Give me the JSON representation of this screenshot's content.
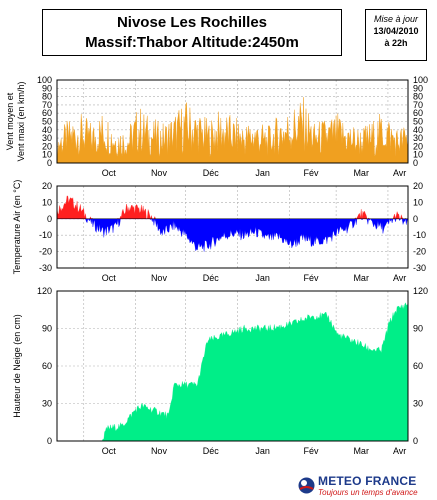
{
  "header": {
    "title_line1": "Nivose Les Rochilles",
    "title_line2": "Massif:Thabor Altitude:2450m"
  },
  "update": {
    "label": "Mise à jour",
    "date": "13/04/2010",
    "time": "à 22h"
  },
  "footer": {
    "brand": "METEO FRANCE",
    "slogan": "Toujours un temps d'avance"
  },
  "colors": {
    "wind": "#f0a020",
    "temp_pos": "#ff2020",
    "temp_neg": "#0000ff",
    "snow": "#00ee88",
    "grid": "#b0b0b0"
  },
  "chart_data": [
    {
      "type": "area",
      "ylabel": "Vent moyen et Vent maxi (en km/h)",
      "ylim": [
        0,
        100
      ],
      "yticks": [
        0,
        10,
        20,
        30,
        40,
        50,
        60,
        70,
        80,
        90,
        100
      ],
      "xticks": [
        "Oct",
        "Nov",
        "Déc",
        "Jan",
        "Fév",
        "Mar",
        "Avr"
      ],
      "grid": true,
      "x_start": "2009-09-15",
      "x_end": "2010-04-13",
      "series": [
        {
          "x": [
            "2009-09-15",
            "2009-09-22",
            "2009-09-29",
            "2009-10-06",
            "2009-10-13",
            "2009-10-20",
            "2009-10-27",
            "2009-11-03",
            "2009-11-10",
            "2009-11-17",
            "2009-11-24",
            "2009-12-01",
            "2009-12-08",
            "2009-12-15",
            "2009-12-22",
            "2009-12-29",
            "2010-01-05",
            "2010-01-12",
            "2010-01-19",
            "2010-01-26",
            "2010-02-02",
            "2010-02-09",
            "2010-02-16",
            "2010-02-23",
            "2010-03-02",
            "2010-03-09",
            "2010-03-16",
            "2010-03-23",
            "2010-03-30",
            "2010-04-06",
            "2010-04-13"
          ],
          "values": [
            35,
            48,
            55,
            45,
            60,
            42,
            38,
            65,
            50,
            45,
            55,
            70,
            58,
            48,
            60,
            52,
            45,
            50,
            40,
            55,
            62,
            75,
            45,
            50,
            55,
            45,
            40,
            48,
            60,
            40,
            45
          ]
        }
      ]
    },
    {
      "type": "area",
      "ylabel": "Temperature Air (en °C)",
      "ylim": [
        -30,
        20
      ],
      "yticks": [
        -30,
        -20,
        -10,
        0,
        10,
        20
      ],
      "xticks": [
        "Oct",
        "Nov",
        "Déc",
        "Jan",
        "Fév",
        "Mar",
        "Avr"
      ],
      "grid": true,
      "x_start": "2009-09-15",
      "x_end": "2010-04-13",
      "series": [
        {
          "x": [
            "2009-09-15",
            "2009-09-22",
            "2009-09-29",
            "2009-10-06",
            "2009-10-13",
            "2009-10-20",
            "2009-10-27",
            "2009-11-03",
            "2009-11-10",
            "2009-11-17",
            "2009-11-24",
            "2009-12-01",
            "2009-12-08",
            "2009-12-15",
            "2009-12-22",
            "2009-12-29",
            "2010-01-05",
            "2010-01-12",
            "2010-01-19",
            "2010-01-26",
            "2010-02-02",
            "2010-02-09",
            "2010-02-16",
            "2010-02-23",
            "2010-03-02",
            "2010-03-09",
            "2010-03-16",
            "2010-03-23",
            "2010-03-30",
            "2010-04-06",
            "2010-04-13"
          ],
          "values": [
            5,
            12,
            6,
            -3,
            -8,
            -5,
            7,
            6,
            2,
            -9,
            -4,
            -10,
            -18,
            -16,
            -11,
            -9,
            -10,
            -8,
            -12,
            -11,
            -16,
            -12,
            -14,
            -13,
            -8,
            -5,
            3,
            -3,
            -6,
            2,
            -4
          ]
        }
      ]
    },
    {
      "type": "area",
      "ylabel": "Hauteur de Neige (en cm)",
      "ylim": [
        0,
        120
      ],
      "yticks": [
        0,
        30,
        60,
        90,
        120
      ],
      "xticks": [
        "Oct",
        "Nov",
        "Déc",
        "Jan",
        "Fév",
        "Mar",
        "Avr"
      ],
      "grid": true,
      "x_start": "2009-09-15",
      "x_end": "2010-04-13",
      "series": [
        {
          "x": [
            "2009-09-15",
            "2009-10-12",
            "2009-10-15",
            "2009-10-24",
            "2009-11-01",
            "2009-11-05",
            "2009-11-21",
            "2009-11-24",
            "2009-12-08",
            "2009-12-14",
            "2009-12-25",
            "2010-01-05",
            "2010-01-20",
            "2010-02-01",
            "2010-02-15",
            "2010-02-24",
            "2010-03-02",
            "2010-03-15",
            "2010-03-20",
            "2010-03-28",
            "2010-04-02",
            "2010-04-06",
            "2010-04-13"
          ],
          "values": [
            0,
            0,
            10,
            12,
            25,
            28,
            20,
            45,
            45,
            80,
            85,
            90,
            90,
            93,
            100,
            100,
            85,
            78,
            74,
            72,
            95,
            105,
            110
          ]
        }
      ]
    }
  ]
}
